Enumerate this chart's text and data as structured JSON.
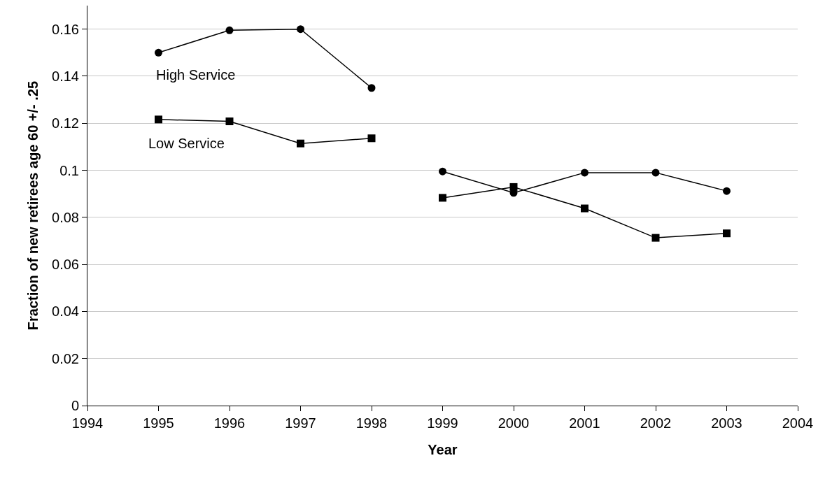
{
  "chart_data": {
    "type": "line",
    "xlabel": "Year",
    "ylabel": "Fraction of new retirees age 60 +/- .25",
    "series": [
      {
        "name": "High Service",
        "color": "#000000",
        "marker": "circle",
        "x": [
          1995,
          1996,
          1997,
          1998
        ],
        "values": [
          0.15,
          0.1595,
          0.16,
          0.135
        ]
      },
      {
        "name": "Low Service",
        "color": "#000000",
        "marker": "square",
        "x": [
          1995,
          1996,
          1997,
          1998
        ],
        "values": [
          0.1216,
          0.1208,
          0.1114,
          0.1136
        ]
      },
      {
        "color": "#000000",
        "marker": "circle",
        "x": [
          1999,
          2000,
          2001,
          2002,
          2003
        ],
        "values": [
          0.0995,
          0.0904,
          0.099,
          0.099,
          0.0912
        ]
      },
      {
        "color": "#000000",
        "marker": "square",
        "x": [
          1999,
          2000,
          2001,
          2002,
          2003
        ],
        "values": [
          0.0883,
          0.0929,
          0.0838,
          0.0713,
          0.0732
        ]
      }
    ],
    "xlim": [
      1994,
      2004
    ],
    "xticks": [
      1994,
      1995,
      1996,
      1997,
      1998,
      1999,
      2000,
      2001,
      2002,
      2003,
      2004
    ],
    "ylim": [
      0,
      0.17
    ],
    "yticks": [
      0,
      0.02,
      0.04,
      0.06,
      0.08,
      0.1,
      0.12,
      0.14,
      0.16
    ],
    "grid": "y",
    "legend": false,
    "line_style": "solid"
  }
}
